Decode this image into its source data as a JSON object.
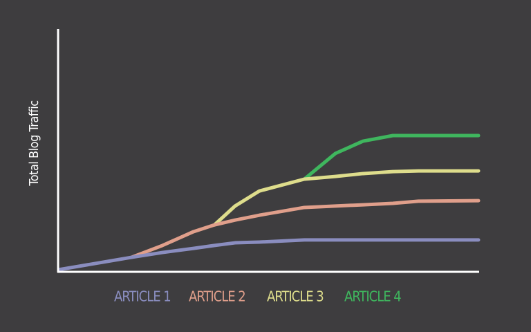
{
  "chart_data": {
    "type": "line",
    "y_label": "Total Blog Traffic",
    "x": [
      0,
      17.3,
      24.7,
      32.1,
      37.1,
      42.0,
      47.8,
      58.5,
      65.9,
      72.5,
      79.6,
      85.7,
      100
    ],
    "xlim": [
      0,
      100
    ],
    "ylim": [
      0,
      100
    ],
    "series": [
      {
        "name": "ARTICLE 1",
        "color": "#8a8dbf",
        "values": [
          0.6,
          5.7,
          7.7,
          9.4,
          10.6,
          11.7,
          12,
          12.9,
          12.9,
          12.9,
          12.9,
          12.9,
          12.9
        ]
      },
      {
        "name": "ARTICLE 2",
        "color": "#e09f8b",
        "values": [
          null,
          5.7,
          10.6,
          16.3,
          19.1,
          21.1,
          23.1,
          26.3,
          26.9,
          27.4,
          28,
          28.9,
          29.1
        ]
      },
      {
        "name": "ARTICLE 3",
        "color": "#dedd8c",
        "values": [
          null,
          null,
          null,
          null,
          19.1,
          26.9,
          33.1,
          38,
          39.1,
          40.3,
          41.1,
          41.4,
          41.4
        ]
      },
      {
        "name": "ARTICLE 4",
        "color": "#3fb65e",
        "values": [
          null,
          null,
          null,
          null,
          null,
          null,
          null,
          38,
          48.6,
          53.7,
          56,
          56,
          56
        ]
      }
    ]
  }
}
